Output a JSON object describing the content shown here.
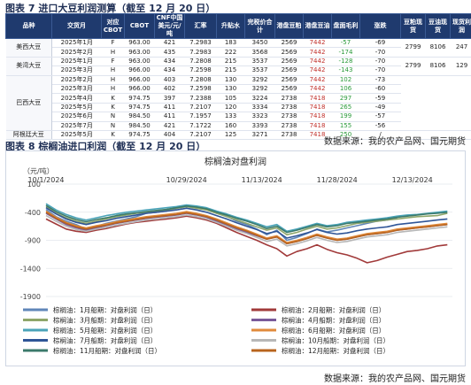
{
  "table": {
    "title": "图表 7 进口大豆利润测算（截至 12 月 20 日）",
    "headers": [
      "品种",
      "交货月",
      "对应CBOT",
      "CBOT",
      "CNF中国美元/元/吨",
      "汇率",
      "升贴水",
      "完税价合计",
      "港盘豆粕",
      "港盘豆油",
      "盘面毛利",
      "涨跌",
      "豆粕现货",
      "豆油现货",
      "现货利润"
    ],
    "groups": [
      {
        "name": "美西大豆",
        "rows": [
          [
            "2025年1月",
            "F",
            "963.00",
            "421",
            "7.2983",
            "183",
            "3450",
            "2569",
            "7442",
            "-57",
            "-69"
          ],
          [
            "2025年2月",
            "H",
            "963.00",
            "435",
            "7.2983",
            "222",
            "3568",
            "2569",
            "7442",
            "-174",
            "-70"
          ]
        ],
        "spot": [
          "2799",
          "8106",
          "247"
        ]
      },
      {
        "name": "美湾大豆",
        "rows": [
          [
            "2025年1月",
            "F",
            "963.00",
            "434",
            "7.2808",
            "215",
            "3537",
            "2569",
            "7442",
            "-128",
            "-70"
          ],
          [
            "2025年3月",
            "H",
            "966.00",
            "434",
            "7.2598",
            "215",
            "3537",
            "2569",
            "7442",
            "-143",
            "-70"
          ]
        ],
        "spot": [
          "2799",
          "8106",
          "129"
        ]
      },
      {
        "name": "巴西大豆",
        "rows": [
          [
            "2025年2月",
            "H",
            "966.00",
            "403",
            "7.2808",
            "130",
            "3292",
            "2569",
            "7442",
            "102",
            "-73"
          ],
          [
            "2025年3月",
            "H",
            "966.00",
            "402",
            "7.2598",
            "130",
            "3292",
            "2569",
            "7442",
            "106",
            "-60"
          ],
          [
            "2025年4月",
            "K",
            "974.75",
            "397",
            "7.2388",
            "105",
            "3224",
            "2738",
            "7418",
            "297",
            "-59"
          ],
          [
            "2025年5月",
            "K",
            "974.75",
            "411",
            "7.2107",
            "120",
            "3334",
            "2738",
            "7418",
            "265",
            "-49"
          ],
          [
            "2025年6月",
            "N",
            "984.50",
            "411",
            "7.1957",
            "133",
            "3323",
            "2738",
            "7418",
            "199",
            "-57"
          ],
          [
            "2025年7月",
            "N",
            "984.50",
            "421",
            "7.1722",
            "160",
            "3393",
            "2738",
            "7418",
            "155",
            "-56"
          ]
        ],
        "spot": [
          "",
          "",
          ""
        ]
      },
      {
        "name": "阿根廷大豆",
        "rows": [
          [
            "2025年5月",
            "K",
            "974.75",
            "404",
            "7.2107",
            "125",
            "3271",
            "2738",
            "7418",
            "250",
            "/"
          ]
        ],
        "spot": [
          "",
          "",
          ""
        ]
      }
    ],
    "source": "数据来源：我的农产品网、国元期货"
  },
  "chart": {
    "figure_title": "图表 8 棕榈油进口利润（截至 12 月 20 日）",
    "source": "数据来源：我的农产品网、国元期货"
  },
  "chart_data": {
    "type": "line",
    "title": "棕榈油对盘利润",
    "ylabel": "（元/吨）",
    "ylim": [
      -1900,
      100
    ],
    "yticks": [
      100,
      -400,
      -900,
      -1400,
      -1900
    ],
    "x_tick_labels": [
      "10/1/2024",
      "10/29/2024",
      "11/13/2024",
      "11/28/2024",
      "12/13/2024"
    ],
    "x_tick_pos": [
      0,
      28,
      43,
      58,
      73
    ],
    "x_range": [
      0,
      81
    ],
    "grid": true,
    "legend_placement": "bottom",
    "series": [
      {
        "name": "棕榈油：1月船期：对盘利润（日）",
        "color": "#5f86b8",
        "x": [
          0,
          2,
          4,
          6,
          8,
          10,
          12,
          14,
          16,
          18,
          20,
          22,
          24,
          26,
          28,
          30,
          32,
          34,
          36,
          38,
          40,
          42,
          44,
          46,
          48,
          50,
          52,
          54,
          56,
          58,
          60,
          62,
          64,
          66,
          68,
          70
        ],
        "y": [
          -350,
          -480,
          -560,
          -620,
          -700,
          -650,
          -600,
          -560,
          -520,
          -480,
          -420,
          -400,
          -380,
          -330,
          -300,
          -320,
          -350,
          -420,
          -470,
          -560,
          -620,
          -700,
          -800,
          -720,
          -900,
          -850,
          -780,
          -700,
          -750,
          -720,
          -680,
          -640,
          -600,
          -560,
          -540,
          -500
        ]
      },
      {
        "name": "棕榈油：2月船期：对盘利润（日）",
        "color": "#a13a3a",
        "x": [
          0,
          2,
          4,
          6,
          8,
          10,
          12,
          14,
          16,
          18,
          20,
          22,
          24,
          26,
          28,
          30,
          32,
          34,
          36,
          38,
          40,
          42,
          44,
          46,
          48,
          50,
          52,
          54,
          56,
          58,
          60,
          62,
          64,
          66,
          68,
          70,
          72,
          74,
          76,
          78,
          80
        ],
        "y": [
          -520,
          -610,
          -700,
          -740,
          -760,
          -720,
          -690,
          -650,
          -610,
          -580,
          -560,
          -540,
          -520,
          -500,
          -470,
          -500,
          -540,
          -600,
          -680,
          -760,
          -830,
          -900,
          -980,
          -1050,
          -1180,
          -1100,
          -1050,
          -980,
          -1060,
          -1120,
          -1160,
          -1220,
          -1300,
          -1260,
          -1200,
          -1150,
          -1100,
          -1080,
          -1050,
          -1000,
          -980
        ]
      },
      {
        "name": "棕榈油：3月船期：对盘利润（日）",
        "color": "#8fa66a",
        "x": [
          0,
          2,
          4,
          6,
          8,
          10,
          12,
          14,
          16,
          18,
          20,
          22,
          24,
          26,
          28,
          30,
          32,
          34,
          36,
          38,
          40,
          42,
          44,
          46,
          48,
          50,
          52,
          54,
          56,
          58,
          60,
          62,
          64,
          66,
          68,
          70,
          72,
          74,
          76,
          78,
          80
        ],
        "y": [
          -300,
          -420,
          -500,
          -560,
          -600,
          -560,
          -520,
          -480,
          -450,
          -420,
          -400,
          -380,
          -360,
          -330,
          -300,
          -330,
          -360,
          -420,
          -480,
          -540,
          -600,
          -660,
          -720,
          -680,
          -800,
          -760,
          -700,
          -650,
          -700,
          -680,
          -640,
          -600,
          -580,
          -560,
          -540,
          -520,
          -500,
          -480,
          -470,
          -460,
          -420
        ]
      },
      {
        "name": "棕榈油：4月船期：对盘利润（日）",
        "color": "#7a5a9a",
        "x": [
          0,
          2,
          4,
          6,
          8,
          10,
          12,
          14,
          16,
          18,
          20,
          22,
          24,
          26,
          28,
          30,
          32,
          34,
          36,
          38,
          40,
          42,
          44,
          46,
          48,
          50,
          52,
          54,
          56,
          58,
          60,
          62,
          64,
          66,
          68,
          70,
          72,
          74,
          76,
          78,
          80
        ],
        "y": [
          -420,
          -520,
          -620,
          -680,
          -720,
          -680,
          -640,
          -600,
          -570,
          -540,
          -510,
          -490,
          -470,
          -450,
          -420,
          -450,
          -490,
          -560,
          -630,
          -700,
          -760,
          -820,
          -880,
          -840,
          -960,
          -920,
          -870,
          -810,
          -860,
          -900,
          -880,
          -840,
          -800,
          -780,
          -760,
          -720,
          -700,
          -680,
          -660,
          -640,
          -620
        ]
      },
      {
        "name": "棕榈油：5月船期：对盘利润（日）",
        "color": "#4aa3b8",
        "x": [
          0,
          2,
          4,
          6,
          8,
          10,
          12,
          14,
          16,
          18,
          20,
          22,
          24,
          26,
          28,
          30,
          32,
          34,
          36,
          38,
          40,
          42,
          44,
          46,
          48,
          50,
          52,
          54,
          56,
          58,
          60,
          62,
          64,
          66,
          68,
          70,
          72,
          74,
          76,
          78,
          80
        ],
        "y": [
          -250,
          -360,
          -440,
          -500,
          -540,
          -500,
          -460,
          -430,
          -400,
          -380,
          -360,
          -340,
          -320,
          -300,
          -270,
          -290,
          -320,
          -380,
          -430,
          -490,
          -540,
          -600,
          -660,
          -620,
          -740,
          -700,
          -650,
          -600,
          -640,
          -620,
          -580,
          -560,
          -540,
          -520,
          -500,
          -470,
          -450,
          -440,
          -420,
          -400,
          -380
        ]
      },
      {
        "name": "棕榈油：6月船期：对盘利润（日）",
        "color": "#e08a3c",
        "x": [
          0,
          2,
          4,
          6,
          8,
          10,
          12,
          14,
          16,
          18,
          20,
          22,
          24,
          26,
          28,
          30,
          32,
          34,
          36,
          38,
          40,
          42,
          44,
          46,
          48,
          50,
          52,
          54,
          56,
          58,
          60,
          62,
          64,
          66,
          68,
          70,
          72,
          74,
          76,
          78,
          80
        ],
        "y": [
          -380,
          -490,
          -580,
          -640,
          -680,
          -640,
          -610,
          -570,
          -540,
          -510,
          -480,
          -460,
          -440,
          -420,
          -390,
          -420,
          -460,
          -520,
          -590,
          -660,
          -720,
          -790,
          -860,
          -820,
          -940,
          -900,
          -850,
          -790,
          -840,
          -880,
          -860,
          -820,
          -780,
          -760,
          -740,
          -700,
          -680,
          -660,
          -640,
          -620,
          -600
        ]
      },
      {
        "name": "棕榈油：7月船期：对盘利润（日）",
        "color": "#2f5597",
        "x": [
          0,
          2,
          4,
          6,
          8,
          10,
          12,
          14,
          16,
          18,
          20,
          22,
          24,
          26,
          28,
          30,
          32,
          34,
          36,
          38,
          40,
          42,
          44,
          46,
          48,
          50,
          52,
          54,
          56,
          58,
          60,
          62,
          64,
          66,
          68,
          70,
          72,
          74,
          76,
          78,
          80
        ],
        "y": [
          -320,
          -430,
          -520,
          -580,
          -620,
          -580,
          -550,
          -510,
          -480,
          -450,
          -420,
          -400,
          -380,
          -360,
          -330,
          -360,
          -400,
          -460,
          -520,
          -590,
          -650,
          -710,
          -780,
          -740,
          -860,
          -820,
          -770,
          -710,
          -760,
          -790,
          -770,
          -730,
          -700,
          -680,
          -660,
          -620,
          -600,
          -580,
          -560,
          -540,
          -520
        ]
      },
      {
        "name": "棕榈油：10月船期：对盘利润（日）",
        "color": "#b7b7b7",
        "x": [
          0,
          2,
          4,
          6,
          8,
          10,
          12,
          14,
          16,
          18,
          20,
          22,
          24,
          26,
          28,
          30,
          32,
          34,
          36,
          38,
          40,
          42,
          44,
          46,
          48,
          50,
          52,
          54,
          56,
          58,
          60,
          62,
          64,
          66,
          68,
          70,
          72,
          74,
          76,
          78,
          80
        ],
        "y": [
          -460,
          -560,
          -650,
          -710,
          -740,
          -700,
          -670,
          -630,
          -600,
          -570,
          -540,
          -520,
          -500,
          -480,
          -450,
          -480,
          -520,
          -580,
          -650,
          -720,
          -780,
          -850,
          -920,
          -880,
          -1000,
          -960,
          -910,
          -850,
          -900,
          -940,
          -920,
          -880,
          -840,
          -820,
          -800,
          -760,
          -740,
          -720,
          -700,
          -680,
          -660
        ]
      },
      {
        "name": "棕榈油：11月船期：对盘利润（日）",
        "color": "#3b7a6b",
        "x": [
          0,
          2,
          4,
          6,
          8,
          10,
          12,
          14,
          16,
          18,
          20,
          22,
          24,
          26,
          28,
          30,
          32,
          34,
          36,
          38,
          40,
          42,
          44,
          46,
          48,
          50,
          52,
          54,
          56,
          58,
          60,
          62,
          64,
          66,
          68,
          70,
          72,
          74,
          76,
          78,
          80
        ],
        "y": [
          -280,
          -390,
          -470,
          -530,
          -570,
          -530,
          -500,
          -460,
          -430,
          -410,
          -390,
          -370,
          -350,
          -320,
          -290,
          -310,
          -340,
          -400,
          -450,
          -510,
          -560,
          -620,
          -690,
          -650,
          -760,
          -720,
          -670,
          -620,
          -660,
          -640,
          -600,
          -580,
          -560,
          -540,
          -520,
          -490,
          -470,
          -450,
          -430,
          -420,
          -400
        ]
      },
      {
        "name": "棕榈油：12月船期：对盘利润（日）",
        "color": "#b8641e",
        "x": [
          0,
          2,
          4,
          6,
          8,
          10,
          12,
          14,
          16,
          18,
          20,
          22,
          24,
          26,
          28,
          30,
          32,
          34,
          36,
          38,
          40,
          42,
          44,
          46,
          48,
          50,
          52,
          54,
          56,
          58,
          60,
          62,
          64,
          66,
          68,
          70,
          72,
          74,
          76,
          78,
          80
        ],
        "y": [
          -400,
          -510,
          -600,
          -660,
          -700,
          -660,
          -630,
          -590,
          -560,
          -530,
          -500,
          -480,
          -460,
          -440,
          -410,
          -440,
          -480,
          -540,
          -610,
          -680,
          -740,
          -810,
          -880,
          -840,
          -960,
          -920,
          -870,
          -810,
          -860,
          -900,
          -880,
          -840,
          -800,
          -780,
          -760,
          -720,
          -700,
          -680,
          -660,
          -640,
          -620
        ]
      }
    ]
  }
}
